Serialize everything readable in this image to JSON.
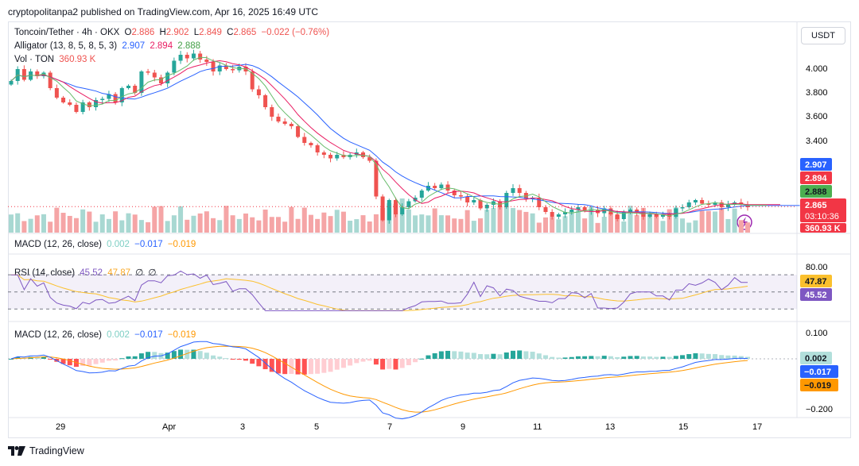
{
  "header": {
    "published_by": "cryptopolitanpa2 published on TradingView.com, Apr 16, 2025 16:49 UTC"
  },
  "legend": {
    "symbol": "Toncoin/Tether · 4h · OKX",
    "o_label": "O",
    "o": "2.886",
    "h_label": "H",
    "h": "2.902",
    "l_label": "L",
    "l": "2.849",
    "c_label": "C",
    "c": "2.865",
    "change": "−0.022 (−0.76%)",
    "alligator_label": "Alligator (13, 8, 5, 8, 5, 3)",
    "alligator_jaw": "2.907",
    "alligator_teeth": "2.894",
    "alligator_lips": "2.888",
    "vol_label": "Vol · TON",
    "vol_value": "360.93 K"
  },
  "currency_button": "USDT",
  "macd_collapsed": {
    "label": "MACD (12, 26, close)",
    "hist": "0.002",
    "macd": "−0.017",
    "signal": "−0.019"
  },
  "rsi_legend": {
    "label": "RSI (14, close)",
    "rsi": "45.52",
    "ma": "47.87",
    "extra1": "∅",
    "extra2": "∅"
  },
  "macd_legend": {
    "label": "MACD (12, 26, close)",
    "hist": "0.002",
    "macd": "−0.017",
    "signal": "−0.019"
  },
  "price_badges": {
    "jaw": "2.907",
    "teeth": "2.894",
    "lips": "2.888",
    "last": "2.865",
    "countdown": "03:10:36",
    "volume": "360.93 K"
  },
  "rsi_badges": {
    "ma": "47.87",
    "rsi": "45.52"
  },
  "macd_badges": {
    "hist": "0.002",
    "macd": "−0.017",
    "signal": "−0.019"
  },
  "footer": {
    "brand": "TradingView"
  },
  "colors": {
    "up": "#26a69a",
    "down": "#ef5350",
    "jaw": "#2962ff",
    "teeth": "#e91e63",
    "lips": "#66bb6a",
    "rsi": "#7e57c2",
    "rsi_ma": "#fbc02d",
    "macd": "#2962ff",
    "signal": "#ff9800"
  },
  "chart_data": [
    {
      "type": "candlestick",
      "title": "Toncoin/Tether · 4h · OKX",
      "x_tick_labels": [
        "29",
        "Apr",
        "3",
        "5",
        "7",
        "9",
        "11",
        "13",
        "15",
        "17"
      ],
      "y_tick_labels": [
        "4.000",
        "3.800",
        "3.600",
        "3.400"
      ],
      "ylim": [
        2.55,
        4.38
      ],
      "close": [
        3.92,
        4.02,
        3.93,
        4.0,
        3.96,
        3.99,
        3.86,
        3.78,
        3.74,
        3.72,
        3.66,
        3.74,
        3.7,
        3.76,
        3.77,
        3.81,
        3.74,
        3.86,
        3.88,
        3.82,
        4.0,
        3.99,
        3.95,
        3.9,
        3.99,
        4.09,
        4.14,
        4.11,
        4.15,
        4.1,
        4.08,
        4.0,
        4.05,
        4.02,
        4.01,
        4.04,
        4.0,
        3.85,
        3.8,
        3.7,
        3.62,
        3.58,
        3.56,
        3.54,
        3.45,
        3.4,
        3.38,
        3.32,
        3.3,
        3.27,
        3.3,
        3.28,
        3.3,
        3.32,
        3.28,
        3.25,
        2.95,
        2.75,
        2.92,
        2.8,
        2.86,
        2.91,
        2.94,
        3.0,
        3.04,
        3.02,
        3.05,
        3.0,
        2.96,
        2.95,
        2.9,
        2.92,
        2.85,
        2.88,
        2.91,
        2.86,
        2.98,
        3.02,
        2.98,
        2.93,
        2.94,
        2.86,
        2.82,
        2.78,
        2.8,
        2.82,
        2.84,
        2.86,
        2.83,
        2.84,
        2.81,
        2.85,
        2.8,
        2.76,
        2.82,
        2.84,
        2.82,
        2.78,
        2.8,
        2.78,
        2.8,
        2.78,
        2.85,
        2.86,
        2.9,
        2.92,
        2.89,
        2.88,
        2.9,
        2.86,
        2.88,
        2.9,
        2.88,
        2.86
      ],
      "rounding": "approximate, read from chart"
    },
    {
      "type": "line",
      "title": "RSI (14, close)",
      "y_tick_labels": [
        "80.00"
      ],
      "ylim": [
        20,
        85
      ],
      "bands": [
        70,
        50,
        30
      ]
    },
    {
      "type": "bar+line",
      "title": "MACD (12, 26, close)",
      "y_tick_labels": [
        "0.100",
        "−0.200"
      ],
      "ylim": [
        -0.25,
        0.13
      ]
    }
  ]
}
